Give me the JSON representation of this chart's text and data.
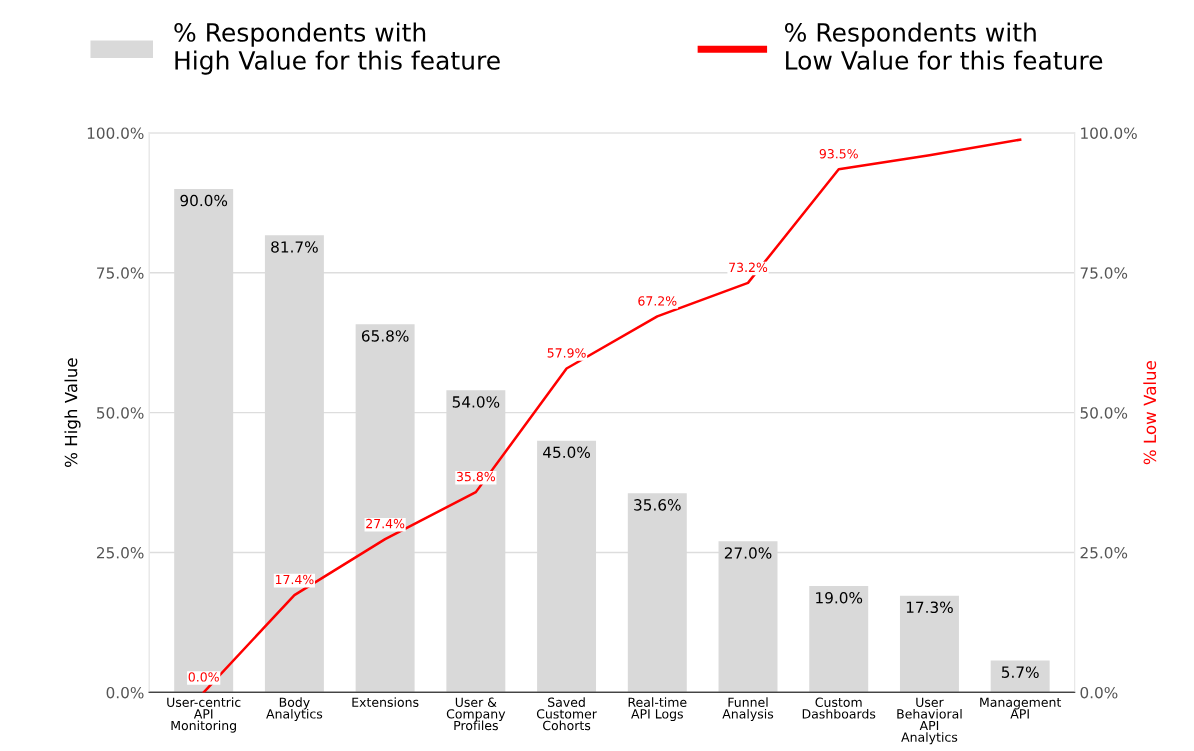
{
  "chart_data": {
    "type": "bar",
    "categories": [
      "User-centric\nAPI\nMonitoring",
      "Body\nAnalytics",
      "Extensions",
      "User &\nCompany\nProfiles",
      "Saved\nCustomer\nCohorts",
      "Real-time\nAPI Logs",
      "Funnel\nAnalysis",
      "Custom\nDashboards",
      "User\nBehavioral\nAPI\nAnalytics",
      "Management\nAPI"
    ],
    "series": [
      {
        "name": "% Respondents with\nHigh Value for this feature",
        "color": "#d9d9d9",
        "values": [
          90.0,
          81.7,
          65.8,
          54.0,
          45.0,
          35.6,
          27.0,
          19.0,
          17.3,
          5.7
        ],
        "value_labels": [
          "90.0%",
          "81.7%",
          "65.8%",
          "54.0%",
          "45.0%",
          "35.6%",
          "27.0%",
          "19.0%",
          "17.3%",
          "5.7%"
        ]
      },
      {
        "name": "% Respondents with\nLow Value for this feature",
        "color": "#ff0000",
        "type": "line",
        "axis": "y2",
        "values": [
          0.0,
          17.4,
          27.4,
          35.8,
          57.9,
          67.2,
          73.2,
          93.5,
          96.0,
          98.8
        ],
        "value_labels": [
          "0.0%",
          "17.4%",
          "27.4%",
          "35.8%",
          "57.9%",
          "67.2%",
          "73.2%",
          "93.5%",
          null,
          null
        ]
      }
    ],
    "ylabel": "% High Value",
    "y2label": "% Low Value",
    "ylim": [
      0,
      100
    ],
    "yticks": [
      {
        "value": 0,
        "label": "0.0%"
      },
      {
        "value": 25,
        "label": "25.0%"
      },
      {
        "value": 50,
        "label": "50.0%"
      },
      {
        "value": 75,
        "label": "75.0%"
      },
      {
        "value": 100,
        "label": "100.0%"
      }
    ],
    "y2lim": [
      0,
      100
    ],
    "y2ticks": [
      {
        "value": 0,
        "label": "0.0%"
      },
      {
        "value": 25,
        "label": "25.0%"
      },
      {
        "value": 50,
        "label": "50.0%"
      },
      {
        "value": 75,
        "label": "75.0%"
      },
      {
        "value": 100,
        "label": "100.0%"
      }
    ],
    "grid": "y",
    "legend": "top",
    "marker": "none",
    "line_style": "solid"
  }
}
